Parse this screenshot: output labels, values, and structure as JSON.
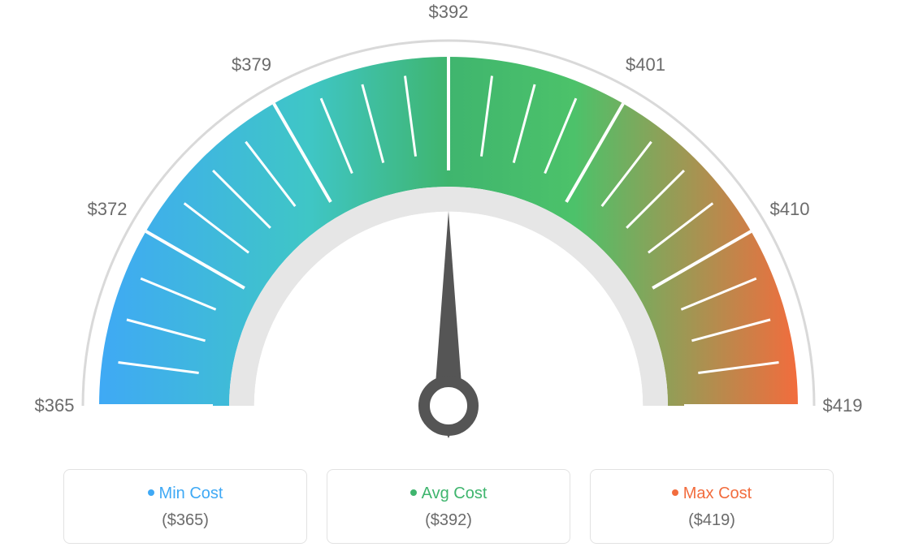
{
  "gauge": {
    "type": "gauge",
    "min": 365,
    "max": 419,
    "value": 392,
    "scale_labels": [
      "$365",
      "$372",
      "$379",
      "$392",
      "$401",
      "$410",
      "$419"
    ],
    "scale_angles_deg": [
      -90,
      -60,
      -30,
      0,
      30,
      60,
      90
    ],
    "needle_angle_deg": 0,
    "colors": {
      "arc_start": "#3fa9f5",
      "arc_mid1": "#3fc6c6",
      "arc_mid2": "#3fb56e",
      "arc_mid3": "#4cc26a",
      "arc_end": "#f26c3d",
      "outer_ring": "#d9d9d9",
      "inner_ring": "#e6e6e6",
      "tick": "#ffffff",
      "needle": "#555555",
      "label": "#6b6b6b",
      "background": "#ffffff"
    },
    "outer_radius": 430,
    "inner_radius": 270,
    "ring_thickness": 14,
    "tick_count_minor": 3,
    "label_fontsize": 22
  },
  "legend": {
    "items": [
      {
        "label": "Min Cost",
        "value": "($365)",
        "color": "#3fa9f5"
      },
      {
        "label": "Avg Cost",
        "value": "($392)",
        "color": "#3fb56e"
      },
      {
        "label": "Max Cost",
        "value": "($419)",
        "color": "#f26c3d"
      }
    ],
    "card_border_color": "#e2e2e2",
    "value_color": "#6b6b6b",
    "label_fontsize": 20
  }
}
